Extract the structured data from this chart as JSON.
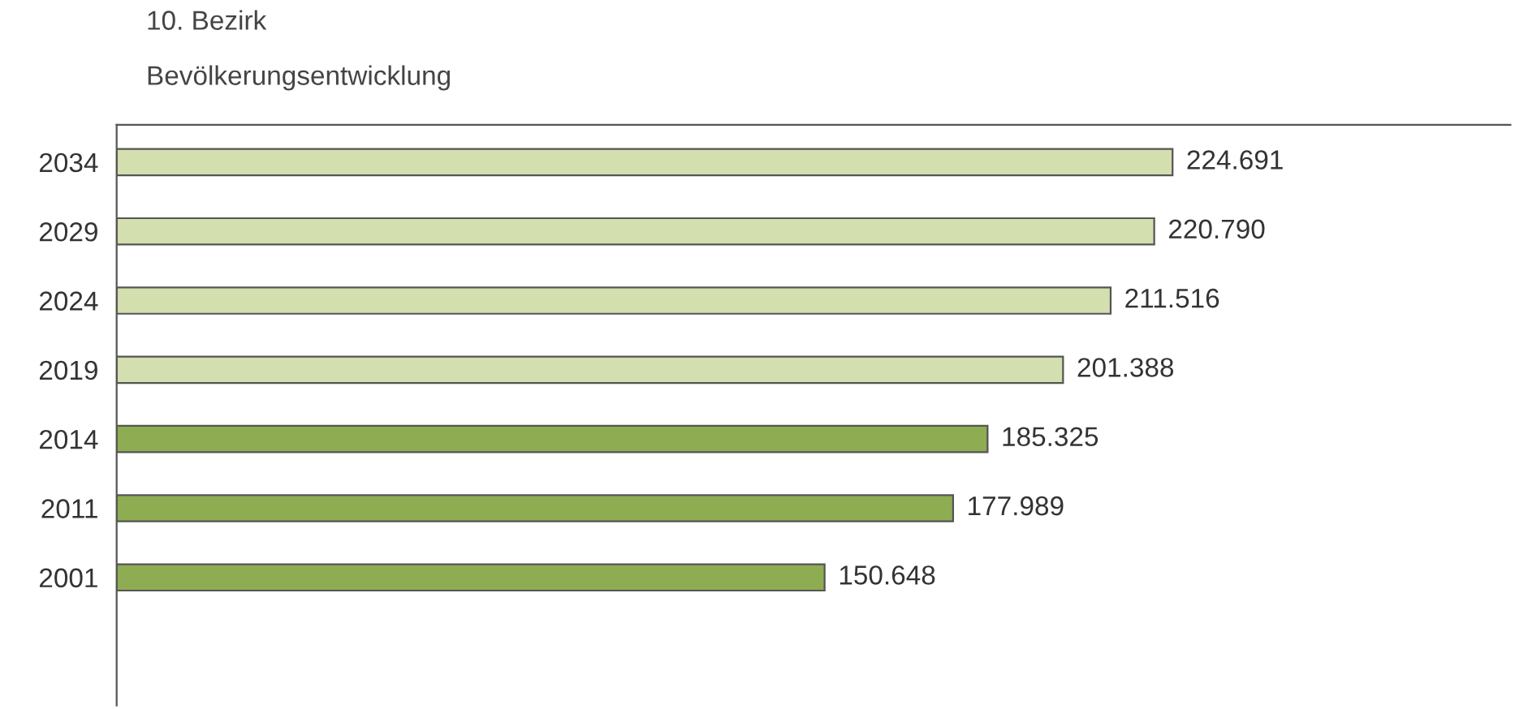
{
  "chart_data": {
    "type": "bar",
    "orientation": "horizontal",
    "title": "10. Bezirk",
    "subtitle": "Bevölkerungsentwicklung",
    "categories": [
      "2034",
      "2029",
      "2024",
      "2019",
      "2014",
      "2011",
      "2001"
    ],
    "values": [
      224691,
      220790,
      211516,
      201388,
      185325,
      177989,
      150648
    ],
    "value_labels": [
      "224.691",
      "220.790",
      "211.516",
      "201.388",
      "185.325",
      "177.989",
      "150.648"
    ],
    "colors": [
      "#d3dfae",
      "#d3dfae",
      "#d3dfae",
      "#d3dfae",
      "#8eac52",
      "#8eac52",
      "#8eac52"
    ],
    "grid": false,
    "legend": false
  }
}
